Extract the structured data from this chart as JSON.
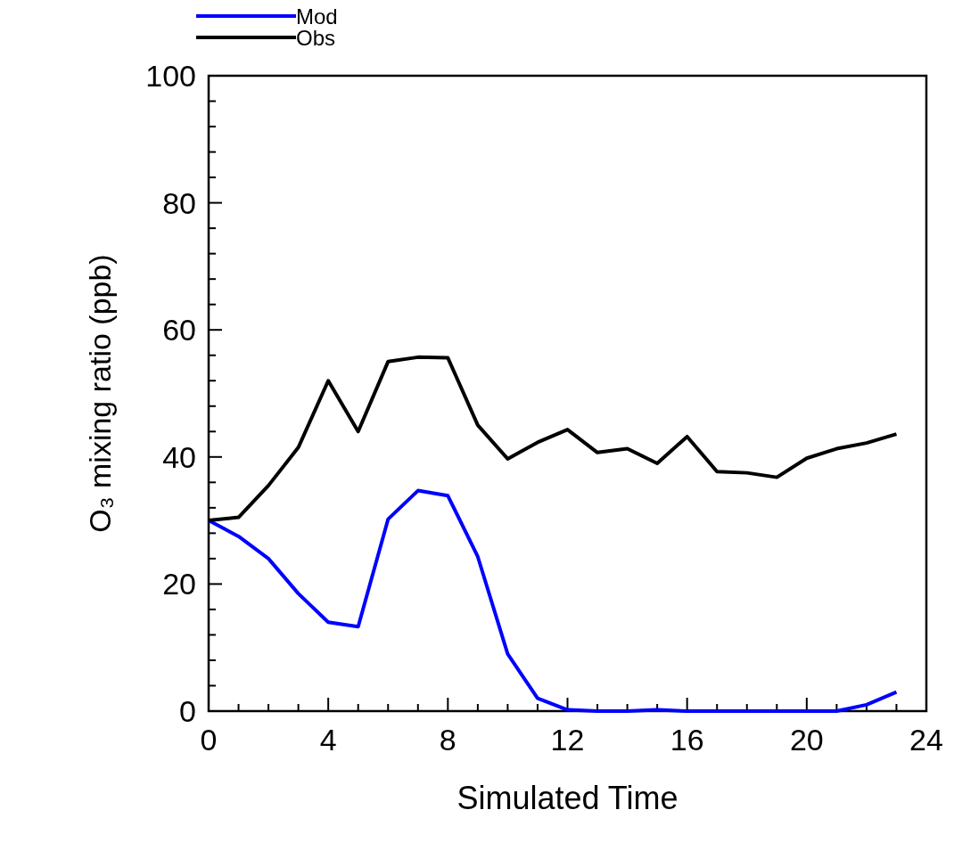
{
  "chart_data": {
    "type": "line",
    "xlabel": "Simulated Time",
    "ylabel": "O₃ mixing ratio (ppb)",
    "x": [
      0,
      1,
      2,
      3,
      4,
      5,
      6,
      7,
      8,
      9,
      10,
      11,
      12,
      13,
      14,
      15,
      16,
      17,
      18,
      19,
      20,
      21,
      22,
      23
    ],
    "series": [
      {
        "name": "Mod",
        "color": "#0000ff",
        "values": [
          30,
          27.5,
          24,
          18.5,
          14,
          13.3,
          30.2,
          34.7,
          33.9,
          24.3,
          9,
          2,
          0.2,
          0,
          0,
          0.2,
          0,
          0,
          0,
          0,
          0,
          0,
          1,
          3
        ]
      },
      {
        "name": "Obs",
        "color": "#000000",
        "values": [
          30,
          30.5,
          35.5,
          41.5,
          52,
          44,
          55,
          55.7,
          55.6,
          45,
          39.7,
          42.3,
          44.3,
          40.7,
          41.3,
          39,
          43.2,
          37.7,
          37.5,
          36.8,
          39.8,
          41.3,
          42.2,
          43.6
        ]
      }
    ],
    "xlim": [
      0,
      24
    ],
    "ylim": [
      0,
      100
    ],
    "xticks": [
      0,
      {
        "value": 1,
        "label": null
      },
      {
        "value": 2,
        "label": null
      },
      {
        "value": 3,
        "label": null
      },
      4,
      {
        "value": 5,
        "label": null
      },
      {
        "value": 6,
        "label": null
      },
      {
        "value": 7,
        "label": null
      },
      8,
      {
        "value": 9,
        "label": null
      },
      {
        "value": 10,
        "label": null
      },
      {
        "value": 11,
        "label": null
      },
      12,
      {
        "value": 13,
        "label": null
      },
      {
        "value": 14,
        "label": null
      },
      {
        "value": 15,
        "label": null
      },
      16,
      {
        "value": 17,
        "label": null
      },
      {
        "value": 18,
        "label": null
      },
      {
        "value": 19,
        "label": null
      },
      20,
      {
        "value": 21,
        "label": null
      },
      {
        "value": 22,
        "label": null
      },
      {
        "value": 23,
        "label": null
      },
      24
    ],
    "yticks": [
      0,
      {
        "value": 4,
        "label": null
      },
      {
        "value": 8,
        "label": null
      },
      {
        "value": 12,
        "label": null
      },
      {
        "value": 16,
        "label": null
      },
      20,
      {
        "value": 24,
        "label": null
      },
      {
        "value": 28,
        "label": null
      },
      {
        "value": 32,
        "label": null
      },
      {
        "value": 36,
        "label": null
      },
      40,
      {
        "value": 44,
        "label": null
      },
      {
        "value": 48,
        "label": null
      },
      {
        "value": 52,
        "label": null
      },
      {
        "value": 56,
        "label": null
      },
      60,
      {
        "value": 64,
        "label": null
      },
      {
        "value": 68,
        "label": null
      },
      {
        "value": 72,
        "label": null
      },
      {
        "value": 76,
        "label": null
      },
      80,
      {
        "value": 84,
        "label": null
      },
      {
        "value": 88,
        "label": null
      },
      {
        "value": 92,
        "label": null
      },
      {
        "value": 96,
        "label": null
      },
      100
    ],
    "grid": false,
    "legend": "top left",
    "marker": "none",
    "line_style": "solid"
  }
}
